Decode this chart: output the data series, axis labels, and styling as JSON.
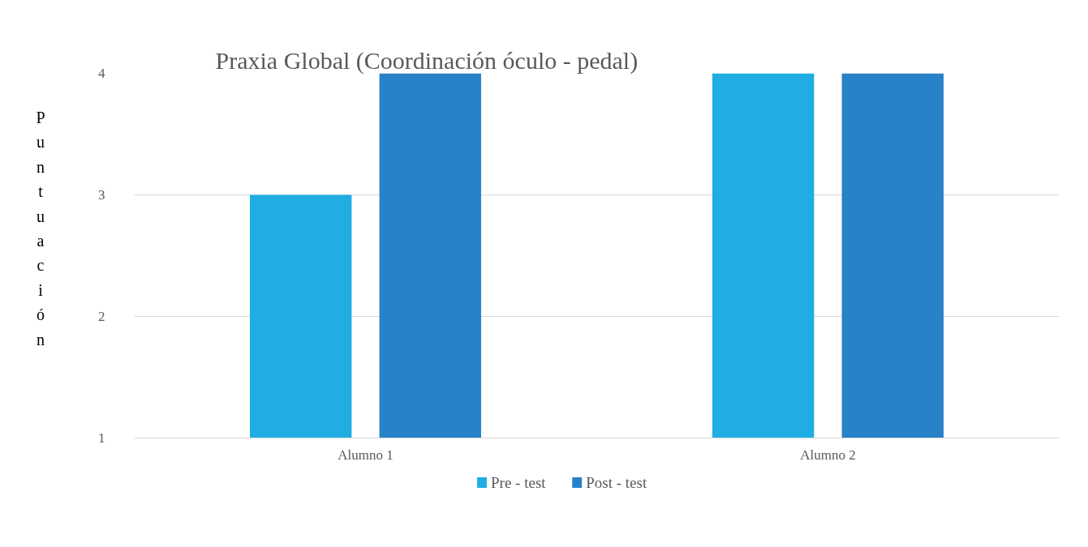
{
  "chart_data": {
    "type": "bar",
    "title": "Praxia Global (Coordinación óculo - pedal)",
    "ylabel": "Puntuación",
    "categories": [
      "Alumno 1",
      "Alumno 2"
    ],
    "series": [
      {
        "name": "Pre - test",
        "color": "#1fade3",
        "values": [
          3,
          4
        ]
      },
      {
        "name": "Post - test",
        "color": "#2882c8",
        "values": [
          4,
          4
        ]
      }
    ],
    "ylim": [
      1,
      4
    ],
    "yticks": [
      1,
      2,
      3,
      4
    ],
    "grid": "y",
    "legend": "bottom"
  }
}
